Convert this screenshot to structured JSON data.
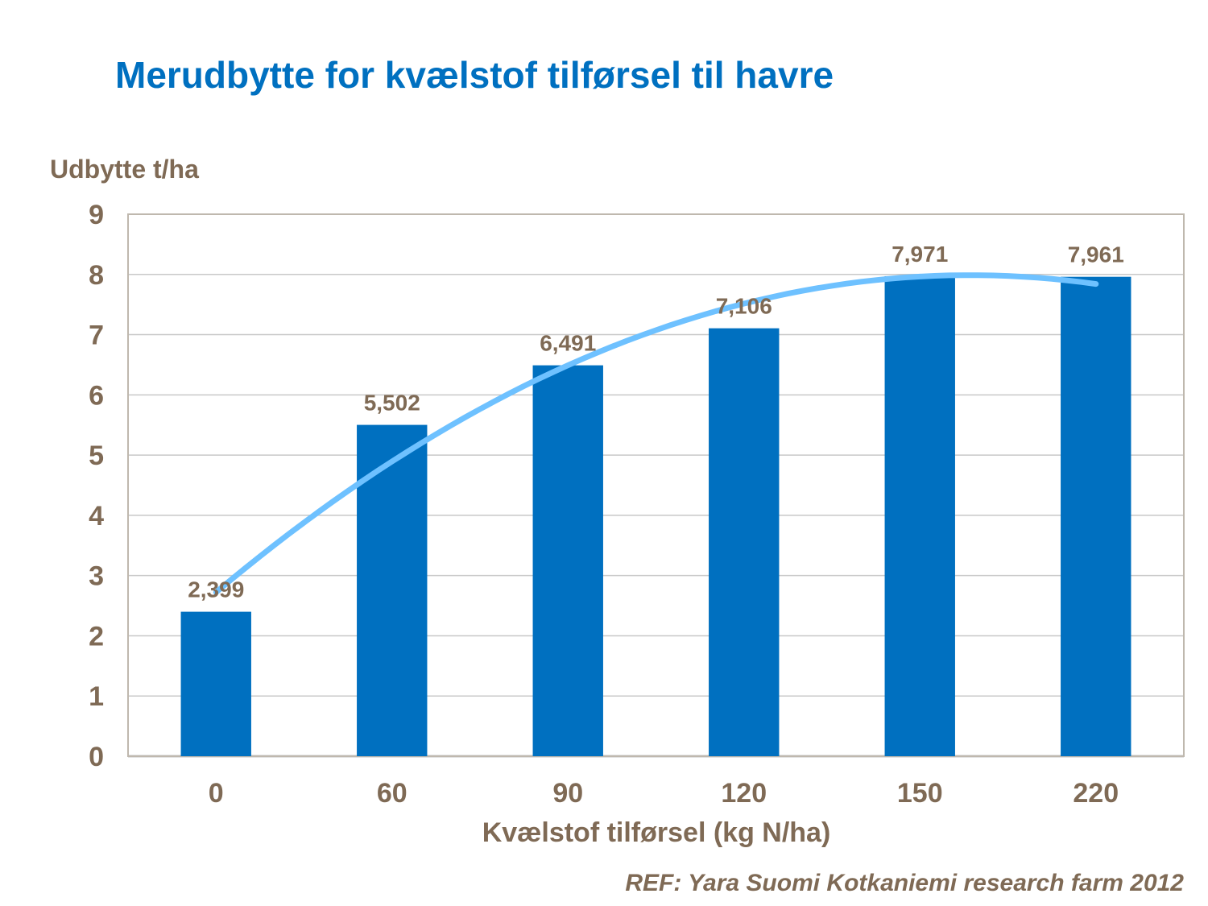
{
  "chart_data": {
    "type": "bar",
    "title": "Merudbytte for kvælstof tilførsel til havre",
    "ylabel": "Udbytte t/ha",
    "xlabel": "Kvælstof tilførsel (kg N/ha)",
    "categories": [
      "0",
      "60",
      "90",
      "120",
      "150",
      "220"
    ],
    "values": [
      2.399,
      5.502,
      6.491,
      7.106,
      7.971,
      7.961
    ],
    "value_labels": [
      "2,399",
      "5,502",
      "6,491",
      "7,106",
      "7,971",
      "7,961"
    ],
    "ylim": [
      0,
      9
    ],
    "yticks": [
      "0",
      "1",
      "2",
      "3",
      "4",
      "5",
      "6",
      "7",
      "8",
      "9"
    ],
    "grid": true,
    "legend": "none",
    "trendline": {
      "type": "polynomial",
      "color": "#6EC1FF"
    },
    "bar_color": "#0070C0",
    "text_color": "#7F6A55"
  },
  "source_note": "REF: Yara Suomi Kotkaniemi research farm 2012"
}
